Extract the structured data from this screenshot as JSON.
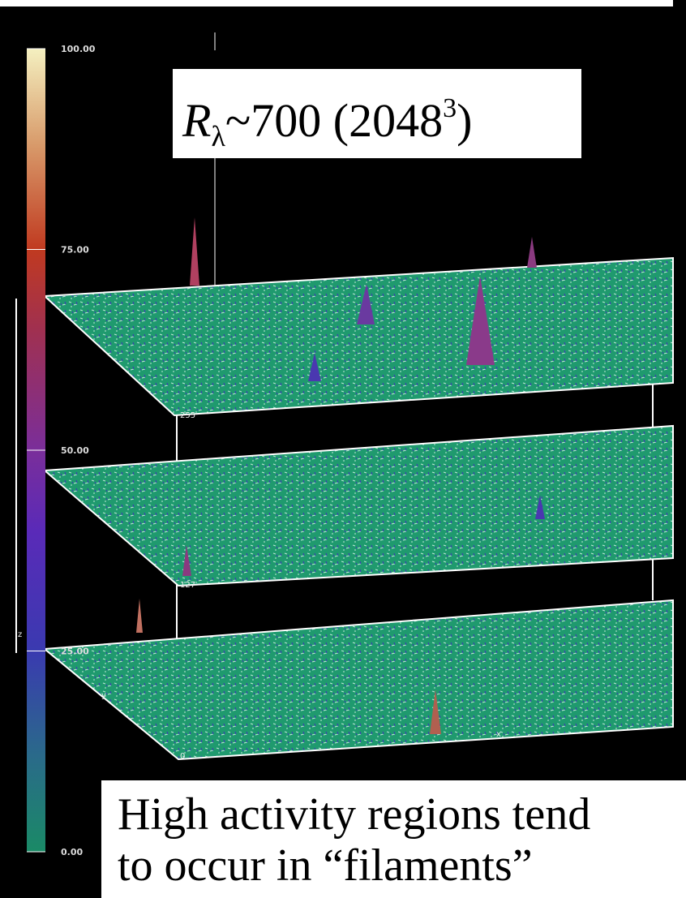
{
  "colorbar": {
    "ticks": [
      {
        "value": 100,
        "label": "100.00"
      },
      {
        "value": 75,
        "label": "75.00"
      },
      {
        "value": 50,
        "label": "50.00"
      },
      {
        "value": 25,
        "label": "25.00"
      },
      {
        "value": 0,
        "label": "0.00"
      }
    ],
    "range": [
      0,
      100
    ]
  },
  "title": {
    "symbol": "R",
    "subscript": "λ",
    "text": "~700 (2048",
    "superscript": "3",
    "close": ")"
  },
  "slice_labels": [
    "255",
    "127",
    "0"
  ],
  "axis_labels": {
    "x": "x",
    "y": "y",
    "z": "z"
  },
  "caption": {
    "lines": [
      "High activity regions tend",
      "to occur in “filaments”"
    ]
  }
}
